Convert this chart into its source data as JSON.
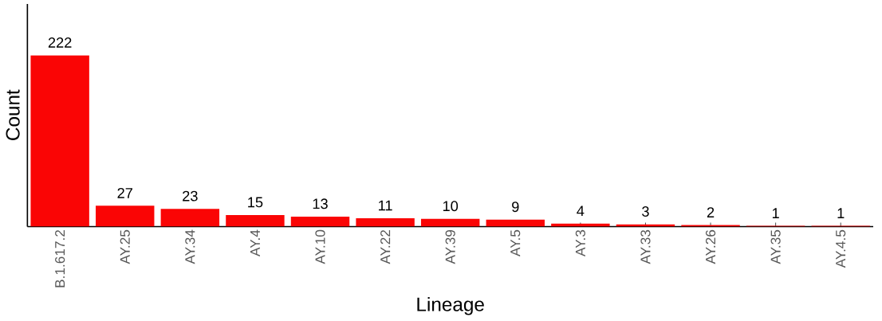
{
  "chart_data": {
    "type": "bar",
    "xlabel": "Lineage",
    "ylabel": "Count",
    "categories": [
      "B.1.617.2",
      "AY.25",
      "AY.34",
      "AY.4",
      "AY.10",
      "AY.22",
      "AY.39",
      "AY.5",
      "AY.3",
      "AY.33",
      "AY.26",
      "AY.35",
      "AY.4.5"
    ],
    "values": [
      222,
      27,
      23,
      15,
      13,
      11,
      10,
      9,
      4,
      3,
      2,
      1,
      1
    ],
    "color": "#fa0505",
    "data_labels": true,
    "tick_labels": "x",
    "grid": false
  }
}
